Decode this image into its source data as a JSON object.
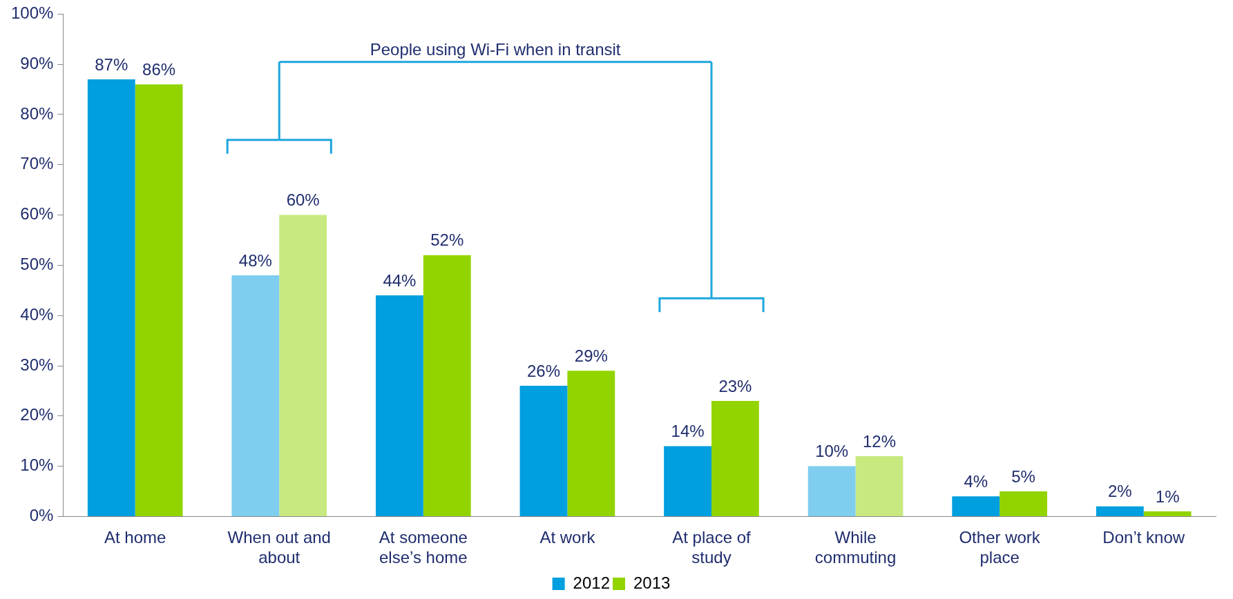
{
  "chart_data": {
    "type": "bar",
    "categories": [
      "At home",
      "When out and about",
      "At someone else’s home",
      "At work",
      "At place of study",
      "While commuting",
      "Other work place",
      "Don’t know"
    ],
    "series": [
      {
        "name": "2012",
        "color": "#009fdf",
        "colors": [
          "#009fdf",
          "#7fcdef",
          "#009fdf",
          "#009fdf",
          "#009fdf",
          "#7fcdef",
          "#009fdf",
          "#009fdf"
        ],
        "values": [
          87,
          48,
          44,
          26,
          14,
          10,
          4,
          2
        ],
        "value_labels": [
          "87%",
          "48%",
          "44%",
          "26%",
          "14%",
          "10%",
          "4%",
          "2%"
        ]
      },
      {
        "name": "2013",
        "color": "#92d400",
        "colors": [
          "#92d400",
          "#c8e97f",
          "#92d400",
          "#92d400",
          "#92d400",
          "#c8e97f",
          "#92d400",
          "#92d400"
        ],
        "values": [
          86,
          60,
          52,
          29,
          23,
          12,
          5,
          1
        ],
        "value_labels": [
          "86%",
          "60%",
          "52%",
          "29%",
          "23%",
          "12%",
          "5%",
          "1%"
        ]
      }
    ],
    "ylim": [
      0,
      100
    ],
    "yticks": [
      {
        "value": 0,
        "label": "0%"
      },
      {
        "value": 10,
        "label": "10%"
      },
      {
        "value": 20,
        "label": "20%"
      },
      {
        "value": 30,
        "label": "30%"
      },
      {
        "value": 40,
        "label": "40%"
      },
      {
        "value": 50,
        "label": "50%"
      },
      {
        "value": 60,
        "label": "60%"
      },
      {
        "value": 70,
        "label": "70%"
      },
      {
        "value": 80,
        "label": "80%"
      },
      {
        "value": 90,
        "label": "90%"
      },
      {
        "value": 100,
        "label": "100%"
      }
    ],
    "grid": false,
    "legend": "bottom",
    "annotations": [
      "People using Wi-Fi when in transit"
    ]
  }
}
